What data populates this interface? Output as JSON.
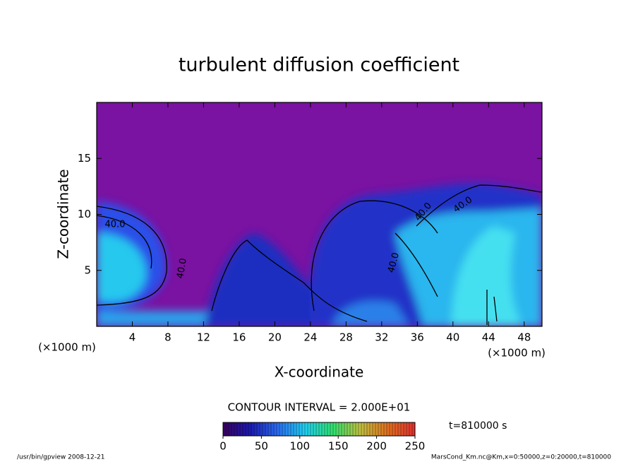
{
  "chart_data": {
    "type": "contour",
    "title": "turbulent diffusion coefficient",
    "x_label": "X-coordinate",
    "y_label": "Z-coordinate",
    "x_unit": "(×1000 m)",
    "x_unit_right": "(×1000 m)",
    "xlim": [
      0,
      50
    ],
    "xticks": [
      4,
      8,
      12,
      16,
      20,
      24,
      28,
      32,
      36,
      40,
      44,
      48
    ],
    "ylim": [
      0,
      20
    ],
    "yticks": [
      5,
      10,
      15
    ],
    "contour_interval": "CONTOUR INTERVAL = 2.000E+01",
    "contour_labels": [
      "40.0",
      "40.0",
      "40.0",
      "40.0",
      "40.0"
    ],
    "time": "t=810000 s",
    "colorbar": {
      "range": [
        0,
        250
      ],
      "ticks": [
        0,
        50,
        100,
        150,
        200,
        250
      ],
      "colors": [
        "#3a0060",
        "#1a1ab0",
        "#2a6cf0",
        "#20d0f0",
        "#30e070",
        "#c0c040",
        "#e07020",
        "#e03030"
      ]
    },
    "footer_left": "/usr/bin/gpview  2008-12-21",
    "footer_right": "MarsCond_Km.nc@Km,x=0:50000,z=0:20000,t=810000"
  }
}
